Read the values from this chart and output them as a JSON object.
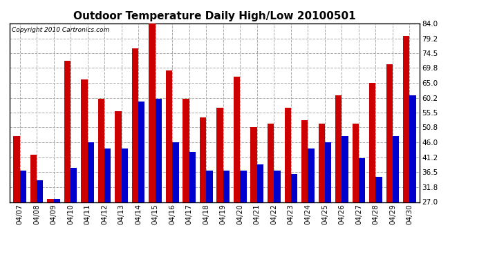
{
  "title": "Outdoor Temperature Daily High/Low 20100501",
  "copyright": "Copyright 2010 Cartronics.com",
  "dates": [
    "04/07",
    "04/08",
    "04/09",
    "04/10",
    "04/11",
    "04/12",
    "04/13",
    "04/14",
    "04/15",
    "04/16",
    "04/17",
    "04/18",
    "04/19",
    "04/20",
    "04/21",
    "04/22",
    "04/23",
    "04/24",
    "04/25",
    "04/26",
    "04/27",
    "04/28",
    "04/29",
    "04/30"
  ],
  "highs": [
    48.0,
    42.0,
    28.0,
    72.0,
    66.0,
    60.0,
    56.0,
    76.0,
    84.0,
    69.0,
    60.0,
    54.0,
    57.0,
    67.0,
    51.0,
    52.0,
    57.0,
    53.0,
    52.0,
    61.0,
    52.0,
    65.0,
    71.0,
    80.0
  ],
  "lows": [
    37.0,
    34.0,
    28.0,
    38.0,
    46.0,
    44.0,
    44.0,
    59.0,
    60.0,
    46.0,
    43.0,
    37.0,
    37.0,
    37.0,
    39.0,
    37.0,
    36.0,
    44.0,
    46.0,
    48.0,
    41.0,
    35.0,
    48.0,
    61.0
  ],
  "high_color": "#cc0000",
  "low_color": "#0000cc",
  "bg_color": "#ffffff",
  "plot_bg_color": "#ffffff",
  "grid_color": "#aaaaaa",
  "ylim_min": 27.0,
  "ylim_max": 84.0,
  "yticks": [
    27.0,
    31.8,
    36.5,
    41.2,
    46.0,
    50.8,
    55.5,
    60.2,
    65.0,
    69.8,
    74.5,
    79.2,
    84.0
  ],
  "title_fontsize": 11,
  "copyright_fontsize": 6.5,
  "tick_fontsize": 7.5,
  "bar_width": 0.38
}
